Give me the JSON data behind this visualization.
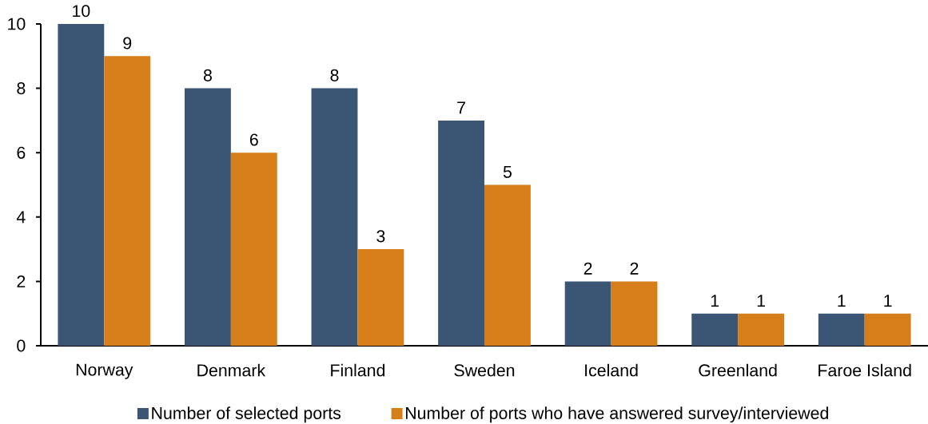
{
  "chart_data": {
    "type": "bar",
    "categories": [
      "Norway",
      "Denmark",
      "Finland",
      "Sweden",
      "Iceland",
      "Greenland",
      "Faroe Island"
    ],
    "series": [
      {
        "name": "Number of selected ports",
        "color": "#3b5575",
        "values": [
          10,
          8,
          8,
          7,
          2,
          1,
          1
        ]
      },
      {
        "name": "Number of ports who have answered survey/interviewed",
        "color": "#d67f1a",
        "values": [
          9,
          6,
          3,
          5,
          2,
          1,
          1
        ]
      }
    ],
    "ylim": [
      0,
      10
    ],
    "yticks": [
      0,
      2,
      4,
      6,
      8,
      10
    ],
    "data_labels": true,
    "legend": "bottom"
  }
}
